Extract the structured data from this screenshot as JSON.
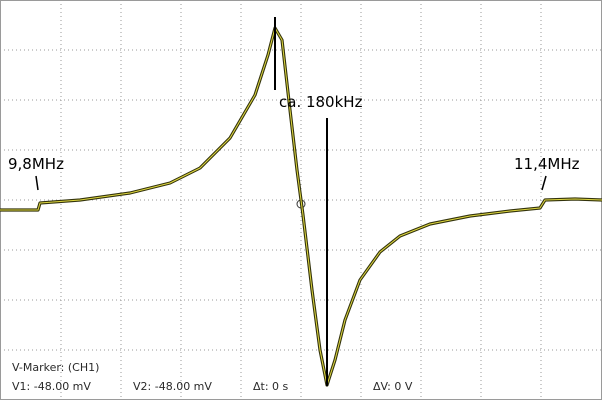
{
  "annotations": {
    "peak_distance": "ca. 180kHz",
    "left_frequency": "9,8MHz",
    "right_frequency": "11,4MHz"
  },
  "marker_panel": {
    "title": "V-Marker: (CH1)",
    "v1": "V1: -48.00 mV",
    "v2": "V2: -48.00 mV",
    "delta_t": "Δt: 0 s",
    "delta_v": "ΔV: 0 V"
  }
}
